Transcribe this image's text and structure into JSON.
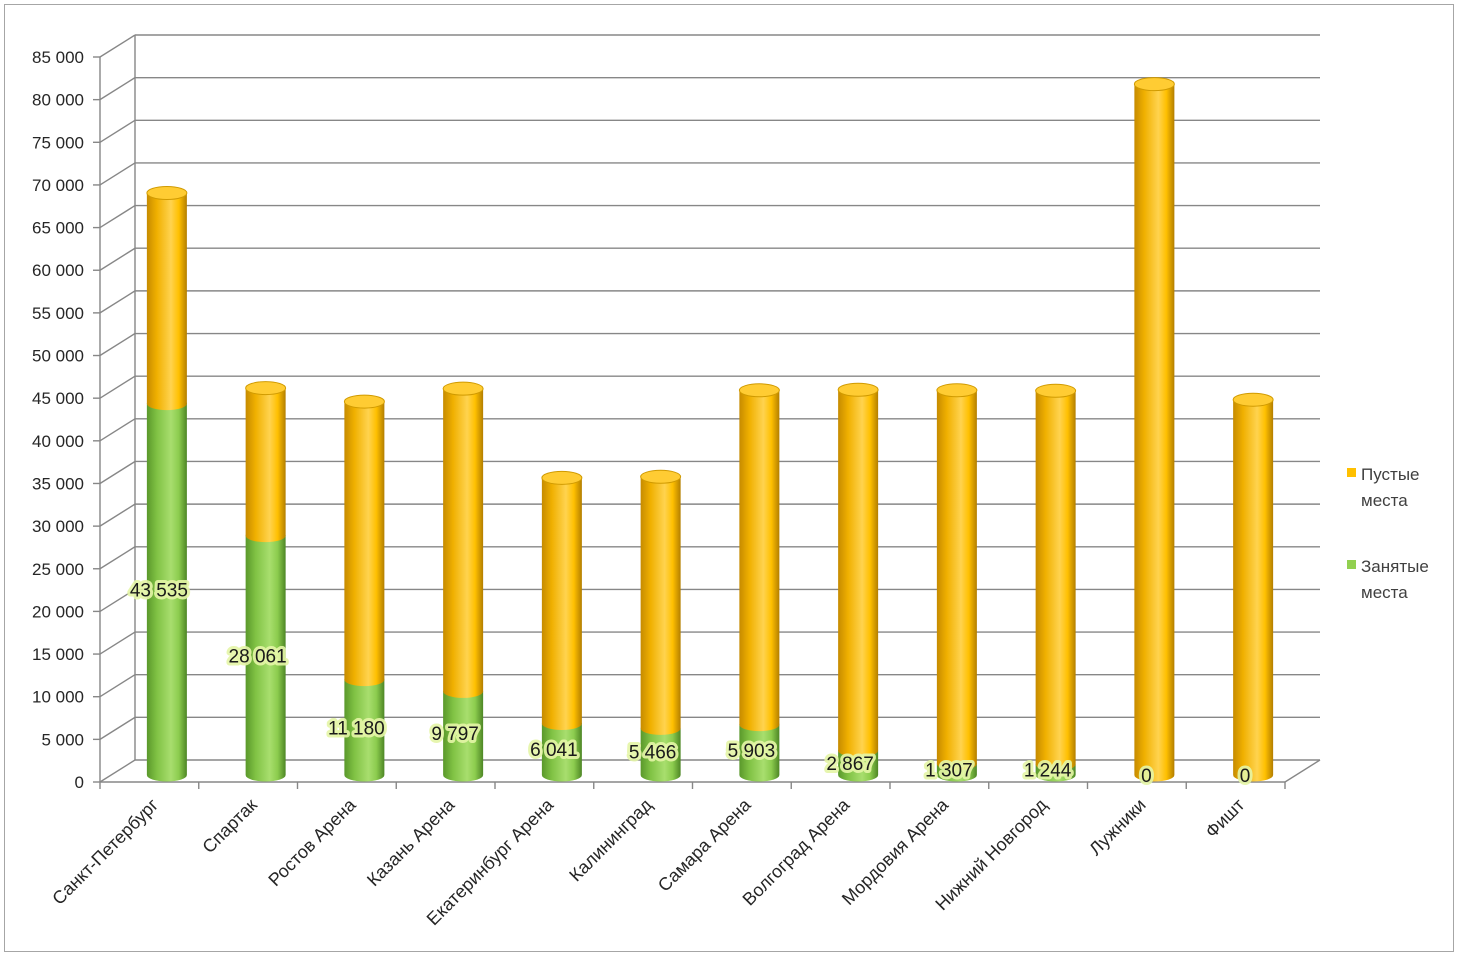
{
  "chart_data": {
    "type": "bar",
    "stacked": true,
    "bar_shape": "cylinder",
    "three_d": true,
    "categories": [
      "Санкт-Петербург",
      "Спартак",
      "Ростов Арена",
      "Казань Арена",
      "Екатеринбург Арена",
      "Калининград",
      "Самара Арена",
      "Волгоград Арена",
      "Мордовия Арена",
      "Нижний Новгород",
      "Лужники",
      "Фишт"
    ],
    "series": [
      {
        "name": "Занятые места",
        "color": "#92d050",
        "values": [
          43535,
          28061,
          11180,
          9797,
          6041,
          5466,
          5903,
          2867,
          1307,
          1244,
          0,
          0
        ],
        "data_labels": [
          "43 535",
          "28 061",
          "11 180",
          "9 797",
          "6 041",
          "5 466",
          "5 903",
          "2 867",
          "1 307",
          "1 244",
          "0",
          "0"
        ]
      },
      {
        "name": "Пустые места",
        "color": "#ffc000",
        "values": [
          24700,
          17300,
          32600,
          35500,
          28800,
          29500,
          39200,
          42300,
          43800,
          43800,
          81000,
          44000
        ]
      }
    ],
    "ylim": [
      0,
      85000
    ],
    "y_tick_labels": [
      "0",
      "5 000",
      "10 000",
      "15 000",
      "20 000",
      "25 000",
      "30 000",
      "35 000",
      "40 000",
      "45 000",
      "50 000",
      "55 000",
      "60 000",
      "65 000",
      "70 000",
      "75 000",
      "80 000",
      "85 000"
    ],
    "grid": true,
    "legend": "right"
  }
}
